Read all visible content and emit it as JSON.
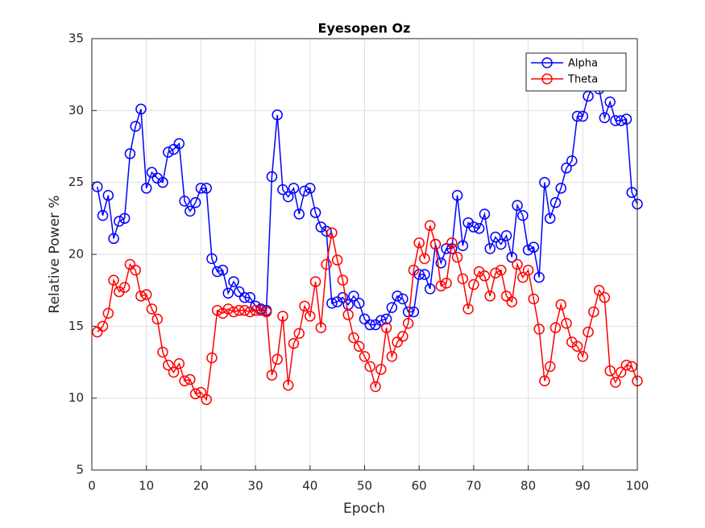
{
  "chart_data": {
    "type": "line",
    "title": "Eyesopen Oz",
    "x_label": "Epoch",
    "y_label": "Relative Power %",
    "x": [
      1,
      2,
      3,
      4,
      5,
      6,
      7,
      8,
      9,
      10,
      11,
      12,
      13,
      14,
      15,
      16,
      17,
      18,
      19,
      20,
      21,
      22,
      23,
      24,
      25,
      26,
      27,
      28,
      29,
      30,
      31,
      32,
      33,
      34,
      35,
      36,
      37,
      38,
      39,
      40,
      41,
      42,
      43,
      44,
      45,
      46,
      47,
      48,
      49,
      50,
      51,
      52,
      53,
      54,
      55,
      56,
      57,
      58,
      59,
      60,
      61,
      62,
      63,
      64,
      65,
      66,
      67,
      68,
      69,
      70,
      71,
      72,
      73,
      74,
      75,
      76,
      77,
      78,
      79,
      80,
      81,
      82,
      83,
      84,
      85,
      86,
      87,
      88,
      89,
      90,
      91,
      92,
      93,
      94,
      95,
      96,
      97,
      98,
      99,
      100
    ],
    "series": [
      {
        "name": "Alpha",
        "color": "#0000ff",
        "values": [
          24.7,
          22.7,
          24.1,
          21.1,
          22.3,
          22.5,
          27.0,
          28.9,
          30.1,
          24.6,
          25.7,
          25.3,
          25.0,
          27.1,
          27.3,
          27.7,
          23.7,
          23.0,
          23.6,
          24.6,
          24.6,
          19.7,
          18.8,
          18.9,
          17.3,
          18.1,
          17.4,
          17.0,
          17.0,
          16.4,
          16.2,
          16.1,
          25.4,
          29.7,
          24.5,
          24.0,
          24.6,
          22.8,
          24.4,
          24.6,
          22.9,
          21.9,
          21.6,
          16.6,
          16.7,
          17.0,
          16.5,
          17.1,
          16.6,
          15.5,
          15.1,
          15.1,
          15.4,
          15.5,
          16.3,
          17.1,
          16.9,
          16.0,
          16.0,
          18.6,
          18.6,
          17.6,
          20.7,
          19.4,
          20.4,
          20.4,
          24.1,
          20.6,
          22.2,
          21.9,
          21.8,
          22.8,
          20.4,
          21.2,
          20.7,
          21.3,
          19.8,
          23.4,
          22.7,
          20.3,
          20.5,
          18.4,
          25.0,
          22.5,
          23.6,
          24.6,
          26.0,
          26.5,
          29.6,
          29.6,
          31.0,
          31.8,
          31.5,
          29.5,
          30.6,
          29.3,
          29.3,
          29.4,
          24.3,
          23.5
        ]
      },
      {
        "name": "Theta",
        "color": "#ff0000",
        "values": [
          14.6,
          15.0,
          15.9,
          18.2,
          17.4,
          17.7,
          19.3,
          18.9,
          17.1,
          17.2,
          16.2,
          15.5,
          13.2,
          12.3,
          11.8,
          12.4,
          11.2,
          11.3,
          10.3,
          10.4,
          9.9,
          12.8,
          16.1,
          15.9,
          16.2,
          16.0,
          16.1,
          16.1,
          16.0,
          16.1,
          16.1,
          16.0,
          11.6,
          12.7,
          15.7,
          10.9,
          13.8,
          14.5,
          16.4,
          15.7,
          18.1,
          14.9,
          19.3,
          21.5,
          19.6,
          18.2,
          15.8,
          14.2,
          13.6,
          12.9,
          12.2,
          10.8,
          12.0,
          14.9,
          12.9,
          13.9,
          14.3,
          15.2,
          18.9,
          20.8,
          19.7,
          22.0,
          20.7,
          17.8,
          18.0,
          20.8,
          19.8,
          18.3,
          16.2,
          17.9,
          18.8,
          18.5,
          17.1,
          18.7,
          18.9,
          17.1,
          16.7,
          19.3,
          18.4,
          18.9,
          16.9,
          14.8,
          11.2,
          12.2,
          14.9,
          16.5,
          15.2,
          13.9,
          13.6,
          12.9,
          14.6,
          16.0,
          17.5,
          17.0,
          11.9,
          11.1,
          11.8,
          12.3,
          12.2,
          11.2
        ]
      }
    ],
    "xlim": [
      0,
      100
    ],
    "xticks": [
      0,
      10,
      20,
      30,
      40,
      50,
      60,
      70,
      80,
      90,
      100
    ],
    "ylim": [
      5,
      35
    ],
    "yticks": [
      5,
      10,
      15,
      20,
      25,
      30,
      35
    ],
    "grid": true,
    "legend_position": "northeast"
  }
}
